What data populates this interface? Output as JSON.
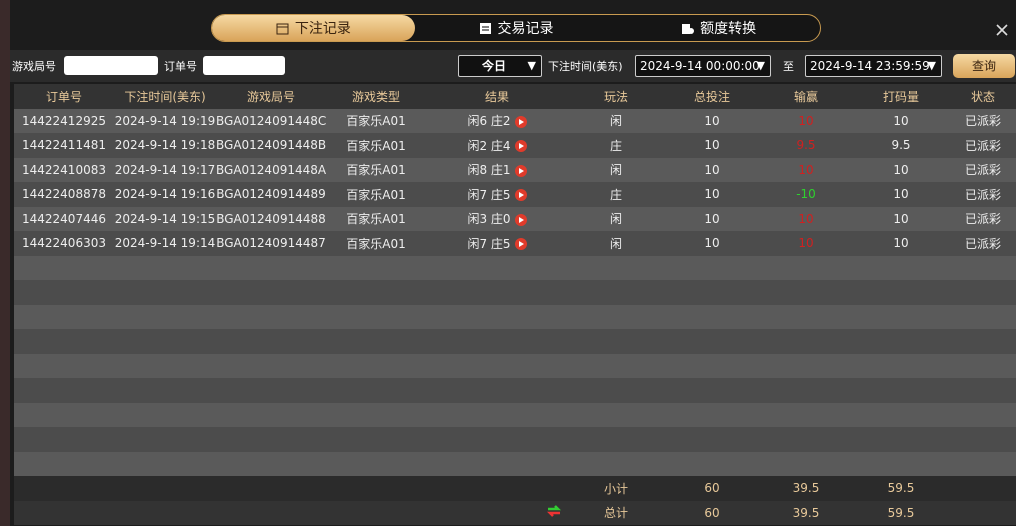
{
  "tabs": [
    "下注记录",
    "交易记录",
    "额度转换"
  ],
  "filters": {
    "game_id_label": "游戏局号",
    "order_label": "订单号",
    "period": "今日",
    "time_label": "下注时间(美东)",
    "start": "2024-9-14 00:00:00",
    "to": "至",
    "end": "2024-9-14 23:59:59",
    "query": "查询"
  },
  "table": {
    "headers": [
      "订单号",
      "下注时间(美东)",
      "游戏局号",
      "游戏类型",
      "结果",
      "玩法",
      "总投注",
      "输赢",
      "打码量",
      "状态"
    ],
    "rows": [
      [
        "14422412925",
        "2024-9-14 19:19",
        "BGA0124091448C",
        "百家乐A01",
        "闲6 庄2",
        "闲",
        "10",
        "10",
        "10",
        "已派彩"
      ],
      [
        "14422411481",
        "2024-9-14 19:18",
        "BGA0124091448B",
        "百家乐A01",
        "闲2 庄4",
        "庄",
        "10",
        "9.5",
        "9.5",
        "已派彩"
      ],
      [
        "14422410083",
        "2024-9-14 19:17",
        "BGA0124091448A",
        "百家乐A01",
        "闲8 庄1",
        "闲",
        "10",
        "10",
        "10",
        "已派彩"
      ],
      [
        "14422408878",
        "2024-9-14 19:16",
        "BGA01240914489",
        "百家乐A01",
        "闲7 庄5",
        "庄",
        "10",
        "-10",
        "10",
        "已派彩"
      ],
      [
        "14422407446",
        "2024-9-14 19:15",
        "BGA01240914488",
        "百家乐A01",
        "闲3 庄0",
        "闲",
        "10",
        "10",
        "10",
        "已派彩"
      ],
      [
        "14422406303",
        "2024-9-14 19:14",
        "BGA01240914487",
        "百家乐A01",
        "闲7 庄5",
        "闲",
        "10",
        "10",
        "10",
        "已派彩"
      ]
    ]
  },
  "summary": {
    "subtotal": {
      "label": "小计",
      "total_bet": "60",
      "win": "39.5",
      "code": "59.5"
    },
    "total": {
      "label": "总计",
      "total_bet": "60",
      "win": "39.5",
      "code": "59.5"
    }
  }
}
